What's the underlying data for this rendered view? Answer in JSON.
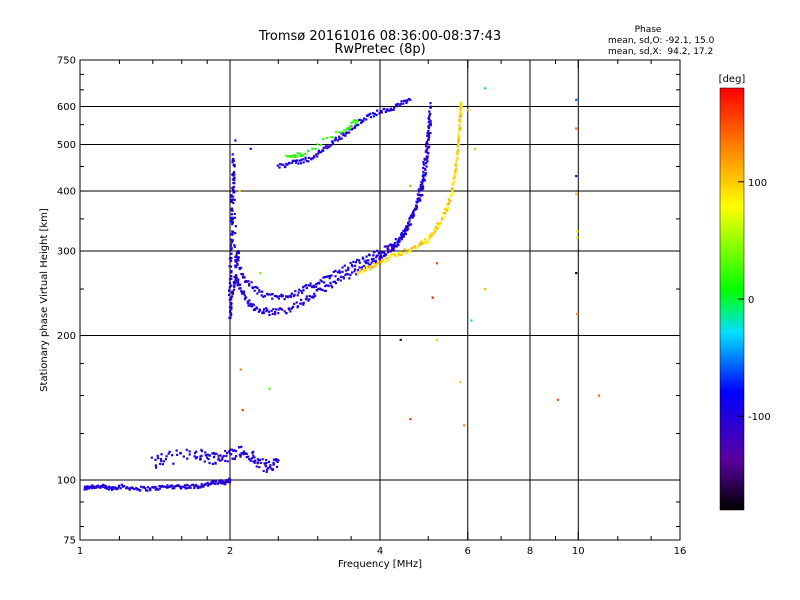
{
  "header": {
    "title_line1": "Tromsø 20161016 08:36:00-08:37:43",
    "title_line2": "RwPretec (8p)"
  },
  "phase_box": {
    "heading": "Phase",
    "line_o": "mean, sd,O: -92.1, 15.0",
    "line_x": "mean, sd,X:  94.2, 17.2"
  },
  "colorbar": {
    "unit_label": "[deg]",
    "range": [
      -180,
      180
    ],
    "ticks": [
      {
        "value": 100,
        "label": "100"
      },
      {
        "value": 0,
        "label": "0"
      },
      {
        "value": -100,
        "label": "-100"
      }
    ]
  },
  "chart_data": {
    "type": "scatter",
    "xlabel": "Frequency [MHz]",
    "ylabel": "Stationary phase Virtual Height [km]",
    "xscale": "log",
    "yscale": "log",
    "xlim": [
      1,
      16
    ],
    "ylim": [
      75,
      750
    ],
    "x_ticks": [
      {
        "value": 1,
        "label": "1"
      },
      {
        "value": 2,
        "label": "2"
      },
      {
        "value": 4,
        "label": "4"
      },
      {
        "value": 6,
        "label": "6"
      },
      {
        "value": 8,
        "label": "8"
      },
      {
        "value": 10,
        "label": "10"
      },
      {
        "value": 16,
        "label": "16"
      }
    ],
    "x_minor_ticks": [
      1.2,
      1.4,
      1.6,
      1.8,
      2.5,
      3,
      3.5,
      5,
      7,
      9,
      12,
      14
    ],
    "x_gridlines": [
      2,
      4,
      6,
      8,
      10
    ],
    "y_ticks": [
      {
        "value": 75,
        "label": "75"
      },
      {
        "value": 100,
        "label": "100"
      },
      {
        "value": 200,
        "label": "200"
      },
      {
        "value": 300,
        "label": "300"
      },
      {
        "value": 400,
        "label": "400"
      },
      {
        "value": 500,
        "label": "500"
      },
      {
        "value": 600,
        "label": "600"
      },
      {
        "value": 750,
        "label": "750"
      }
    ],
    "y_minor_ticks": [
      80,
      90,
      125,
      150,
      175,
      250,
      350,
      450,
      550,
      650,
      700
    ],
    "y_gridlines": [
      100,
      200,
      300,
      400,
      500,
      600
    ],
    "color_by": "phase",
    "traces": [
      {
        "name": "e-layer",
        "phase": -100,
        "spread": 0.01,
        "pts": [
          [
            1.02,
            96
          ],
          [
            1.05,
            97
          ],
          [
            1.1,
            97
          ],
          [
            1.15,
            96
          ],
          [
            1.2,
            97
          ],
          [
            1.3,
            96
          ],
          [
            1.4,
            96
          ],
          [
            1.5,
            97
          ],
          [
            1.6,
            97
          ],
          [
            1.7,
            97
          ],
          [
            1.8,
            98
          ],
          [
            1.9,
            99
          ],
          [
            1.96,
            99
          ],
          [
            2.0,
            100
          ]
        ]
      },
      {
        "name": "es-patches",
        "phase": -100,
        "spread": 0.03,
        "pts": [
          [
            1.4,
            109
          ],
          [
            1.5,
            111
          ],
          [
            1.7,
            114
          ],
          [
            1.8,
            112
          ],
          [
            1.9,
            111
          ],
          [
            2.0,
            113
          ],
          [
            2.1,
            115
          ],
          [
            2.2,
            112
          ],
          [
            2.3,
            108
          ],
          [
            2.4,
            106
          ],
          [
            2.5,
            110
          ]
        ]
      },
      {
        "name": "f-o-lower",
        "phase": -100,
        "spread": 0.015,
        "pts": [
          [
            2.0,
            218
          ],
          [
            2.02,
            245
          ],
          [
            2.05,
            265
          ],
          [
            2.08,
            255
          ],
          [
            2.15,
            238
          ],
          [
            2.25,
            228
          ],
          [
            2.4,
            224
          ],
          [
            2.6,
            226
          ],
          [
            2.8,
            235
          ],
          [
            3.0,
            246
          ],
          [
            3.2,
            256
          ],
          [
            3.5,
            268
          ],
          [
            3.8,
            282
          ],
          [
            4.0,
            292
          ],
          [
            4.2,
            302
          ],
          [
            4.4,
            318
          ],
          [
            4.6,
            345
          ],
          [
            4.75,
            380
          ],
          [
            4.85,
            420
          ],
          [
            4.95,
            480
          ],
          [
            5.0,
            540
          ],
          [
            5.05,
            610
          ]
        ]
      },
      {
        "name": "f-o-upper",
        "phase": -100,
        "spread": 0.015,
        "pts": [
          [
            2.05,
            290
          ],
          [
            2.15,
            260
          ],
          [
            2.3,
            245
          ],
          [
            2.5,
            240
          ],
          [
            2.7,
            245
          ],
          [
            2.9,
            253
          ],
          [
            3.1,
            262
          ],
          [
            3.4,
            276
          ],
          [
            3.7,
            288
          ],
          [
            4.0,
            298
          ],
          [
            4.3,
            312
          ],
          [
            4.5,
            330
          ],
          [
            4.7,
            362
          ],
          [
            4.85,
            400
          ],
          [
            4.95,
            450
          ],
          [
            5.0,
            500
          ],
          [
            5.05,
            560
          ]
        ]
      },
      {
        "name": "f-o-vertical",
        "phase": -100,
        "spread": 0.02,
        "pts": [
          [
            2.0,
            220
          ],
          [
            2.0,
            260
          ],
          [
            2.01,
            300
          ],
          [
            2.02,
            340
          ],
          [
            2.02,
            380
          ],
          [
            2.03,
            420
          ],
          [
            2.03,
            470
          ],
          [
            2.05,
            280
          ],
          [
            2.08,
            300
          ]
        ]
      },
      {
        "name": "f2-trace",
        "phase": -100,
        "spread": 0.012,
        "pts": [
          [
            2.5,
            452
          ],
          [
            2.7,
            458
          ],
          [
            2.9,
            468
          ],
          [
            3.1,
            490
          ],
          [
            3.3,
            515
          ],
          [
            3.5,
            540
          ],
          [
            3.7,
            565
          ],
          [
            4.0,
            585
          ],
          [
            4.3,
            600
          ],
          [
            4.6,
            620
          ]
        ]
      },
      {
        "name": "f-x-trace",
        "phase": 94,
        "spread": 0.012,
        "pts": [
          [
            3.6,
            270
          ],
          [
            3.9,
            280
          ],
          [
            4.2,
            292
          ],
          [
            4.5,
            300
          ],
          [
            4.8,
            308
          ],
          [
            5.0,
            318
          ],
          [
            5.2,
            335
          ],
          [
            5.4,
            360
          ],
          [
            5.55,
            390
          ],
          [
            5.65,
            430
          ],
          [
            5.72,
            480
          ],
          [
            5.76,
            530
          ],
          [
            5.8,
            580
          ],
          [
            5.82,
            610
          ]
        ]
      },
      {
        "name": "green-cluster",
        "phase": 20,
        "spread": 0.012,
        "pts": [
          [
            2.6,
            470
          ],
          [
            2.8,
            478
          ],
          [
            3.4,
            540
          ],
          [
            3.6,
            560
          ]
        ]
      }
    ],
    "extra_points": [
      {
        "x": 2.05,
        "y": 510,
        "phase": -100
      },
      {
        "x": 2.09,
        "y": 400,
        "phase": 100
      },
      {
        "x": 2.1,
        "y": 170,
        "phase": 130
      },
      {
        "x": 2.12,
        "y": 140,
        "phase": 160
      },
      {
        "x": 2.2,
        "y": 490,
        "phase": -80
      },
      {
        "x": 2.4,
        "y": 155,
        "phase": 30
      },
      {
        "x": 2.3,
        "y": 270,
        "phase": 40
      },
      {
        "x": 4.4,
        "y": 196,
        "phase": -150
      },
      {
        "x": 4.6,
        "y": 410,
        "phase": 120
      },
      {
        "x": 4.6,
        "y": 134,
        "phase": 150
      },
      {
        "x": 5.1,
        "y": 240,
        "phase": 170
      },
      {
        "x": 5.2,
        "y": 283,
        "phase": 150
      },
      {
        "x": 5.2,
        "y": 196,
        "phase": 100
      },
      {
        "x": 5.8,
        "y": 160,
        "phase": 100
      },
      {
        "x": 5.9,
        "y": 130,
        "phase": 130
      },
      {
        "x": 6.0,
        "y": 590,
        "phase": 110
      },
      {
        "x": 6.2,
        "y": 490,
        "phase": 40
      },
      {
        "x": 6.5,
        "y": 250,
        "phase": 110
      },
      {
        "x": 6.5,
        "y": 655,
        "phase": -10
      },
      {
        "x": 6.1,
        "y": 215,
        "phase": -20
      },
      {
        "x": 9.1,
        "y": 147,
        "phase": 150
      },
      {
        "x": 9.9,
        "y": 620,
        "phase": -60
      },
      {
        "x": 9.9,
        "y": 540,
        "phase": 140
      },
      {
        "x": 9.9,
        "y": 430,
        "phase": -110
      },
      {
        "x": 9.9,
        "y": 395,
        "phase": 100
      },
      {
        "x": 9.95,
        "y": 330,
        "phase": 90
      },
      {
        "x": 9.95,
        "y": 320,
        "phase": 90
      },
      {
        "x": 9.9,
        "y": 270,
        "phase": -170
      },
      {
        "x": 9.95,
        "y": 222,
        "phase": 130
      },
      {
        "x": 11.0,
        "y": 150,
        "phase": 140
      }
    ]
  }
}
